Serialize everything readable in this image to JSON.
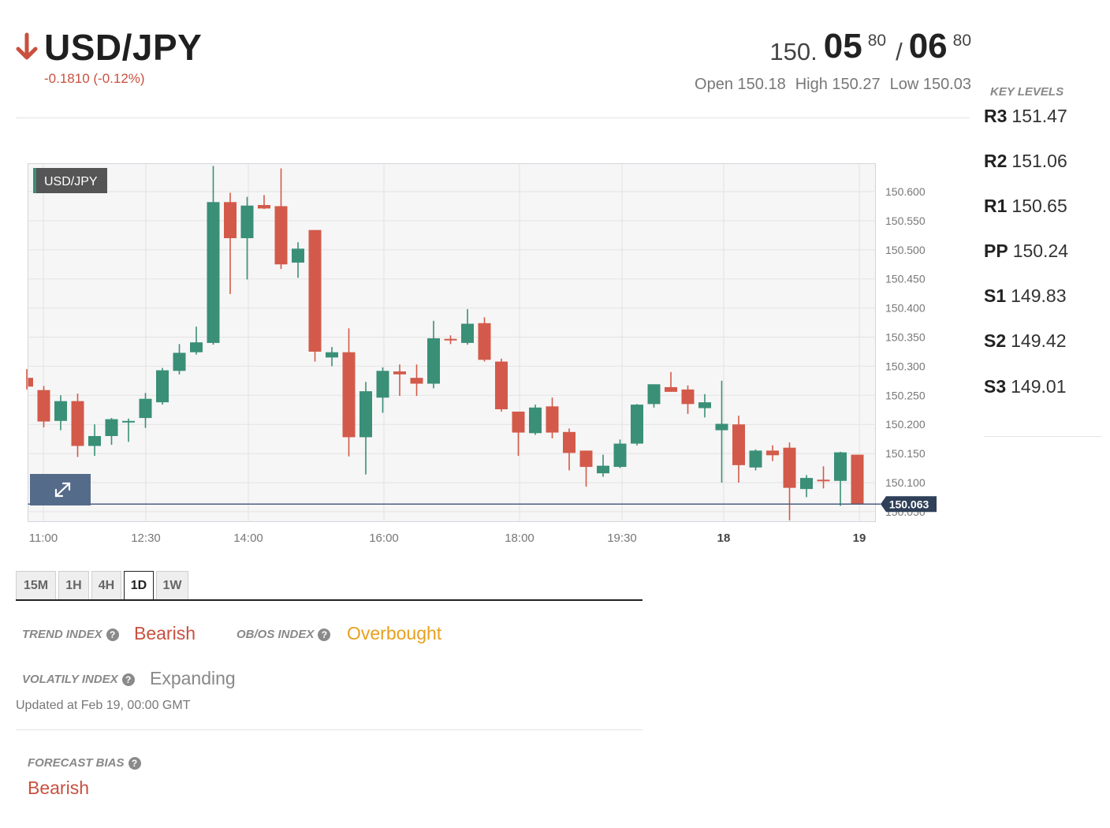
{
  "header": {
    "pair": "USD/JPY",
    "direction": "down",
    "change": "-0.1810 (-0.12%)",
    "bid_prefix": "150.",
    "bid_big": "05",
    "bid_sup": "80",
    "separator": "/",
    "ask_big": "06",
    "ask_sup": "80",
    "open": "Open 150.18",
    "high": "High 150.27",
    "low": "Low 150.03"
  },
  "key_levels": {
    "title": "KEY LEVELS",
    "levels": [
      {
        "name": "R3",
        "value": "151.47"
      },
      {
        "name": "R2",
        "value": "151.06"
      },
      {
        "name": "R1",
        "value": "150.65"
      },
      {
        "name": "PP",
        "value": "150.24"
      },
      {
        "name": "S1",
        "value": "149.83"
      },
      {
        "name": "S2",
        "value": "149.42"
      },
      {
        "name": "S3",
        "value": "149.01"
      }
    ]
  },
  "chart_label": "USD/JPY",
  "chart_data": {
    "type": "candlestick",
    "symbol": "USD/JPY",
    "y_ticks": [
      "150.600",
      "150.550",
      "150.500",
      "150.450",
      "150.400",
      "150.350",
      "150.300",
      "150.250",
      "150.200",
      "150.150",
      "150.100",
      "150.050"
    ],
    "ylim": [
      150.03,
      150.645
    ],
    "x_labels": [
      {
        "label": "11:00",
        "bold": false
      },
      {
        "label": "12:30",
        "bold": false
      },
      {
        "label": "14:00",
        "bold": false
      },
      {
        "label": "16:00",
        "bold": false
      },
      {
        "label": "18:00",
        "bold": false
      },
      {
        "label": "19:30",
        "bold": false
      },
      {
        "label": "18",
        "bold": true
      },
      {
        "label": "19",
        "bold": true
      }
    ],
    "current_price": "150.063",
    "current_value": 150.063,
    "colors": {
      "up": "#3a8f77",
      "down": "#d35a4a",
      "price_line": "#4a5f80"
    },
    "candles": [
      {
        "o": 150.28,
        "h": 150.295,
        "l": 150.26,
        "c": 150.265
      },
      {
        "o": 150.259,
        "h": 150.266,
        "l": 150.195,
        "c": 150.205
      },
      {
        "o": 150.206,
        "h": 150.25,
        "l": 150.19,
        "c": 150.24
      },
      {
        "o": 150.24,
        "h": 150.253,
        "l": 150.144,
        "c": 150.163
      },
      {
        "o": 150.163,
        "h": 150.2,
        "l": 150.146,
        "c": 150.18
      },
      {
        "o": 150.18,
        "h": 150.211,
        "l": 150.165,
        "c": 150.209
      },
      {
        "o": 150.204,
        "h": 150.21,
        "l": 150.17,
        "c": 150.206
      },
      {
        "o": 150.211,
        "h": 150.254,
        "l": 150.194,
        "c": 150.244
      },
      {
        "o": 150.238,
        "h": 150.297,
        "l": 150.234,
        "c": 150.293
      },
      {
        "o": 150.292,
        "h": 150.338,
        "l": 150.286,
        "c": 150.323
      },
      {
        "o": 150.324,
        "h": 150.368,
        "l": 150.32,
        "c": 150.341
      },
      {
        "o": 150.34,
        "h": 150.644,
        "l": 150.337,
        "c": 150.582
      },
      {
        "o": 150.582,
        "h": 150.598,
        "l": 150.424,
        "c": 150.52
      },
      {
        "o": 150.52,
        "h": 150.591,
        "l": 150.449,
        "c": 150.576
      },
      {
        "o": 150.577,
        "h": 150.594,
        "l": 150.57,
        "c": 150.571
      },
      {
        "o": 150.575,
        "h": 150.64,
        "l": 150.467,
        "c": 150.475
      },
      {
        "o": 150.478,
        "h": 150.513,
        "l": 150.452,
        "c": 150.502
      },
      {
        "o": 150.534,
        "h": 150.534,
        "l": 150.308,
        "c": 150.325
      },
      {
        "o": 150.315,
        "h": 150.333,
        "l": 150.3,
        "c": 150.324
      },
      {
        "o": 150.324,
        "h": 150.365,
        "l": 150.145,
        "c": 150.178
      },
      {
        "o": 150.178,
        "h": 150.273,
        "l": 150.114,
        "c": 150.257
      },
      {
        "o": 150.246,
        "h": 150.298,
        "l": 150.22,
        "c": 150.292
      },
      {
        "o": 150.291,
        "h": 150.303,
        "l": 150.249,
        "c": 150.286
      },
      {
        "o": 150.28,
        "h": 150.303,
        "l": 150.249,
        "c": 150.27
      },
      {
        "o": 150.27,
        "h": 150.378,
        "l": 150.262,
        "c": 150.348
      },
      {
        "o": 150.347,
        "h": 150.353,
        "l": 150.338,
        "c": 150.345
      },
      {
        "o": 150.34,
        "h": 150.398,
        "l": 150.337,
        "c": 150.373
      },
      {
        "o": 150.374,
        "h": 150.384,
        "l": 150.308,
        "c": 150.311
      },
      {
        "o": 150.308,
        "h": 150.313,
        "l": 150.222,
        "c": 150.226
      },
      {
        "o": 150.222,
        "h": 150.222,
        "l": 150.146,
        "c": 150.186
      },
      {
        "o": 150.185,
        "h": 150.234,
        "l": 150.182,
        "c": 150.229
      },
      {
        "o": 150.231,
        "h": 150.246,
        "l": 150.176,
        "c": 150.186
      },
      {
        "o": 150.187,
        "h": 150.193,
        "l": 150.121,
        "c": 150.151
      },
      {
        "o": 150.155,
        "h": 150.155,
        "l": 150.093,
        "c": 150.127
      },
      {
        "o": 150.116,
        "h": 150.148,
        "l": 150.11,
        "c": 150.129
      },
      {
        "o": 150.127,
        "h": 150.174,
        "l": 150.125,
        "c": 150.167
      },
      {
        "o": 150.167,
        "h": 150.235,
        "l": 150.164,
        "c": 150.234
      },
      {
        "o": 150.235,
        "h": 150.264,
        "l": 150.229,
        "c": 150.269
      },
      {
        "o": 150.264,
        "h": 150.29,
        "l": 150.256,
        "c": 150.256
      },
      {
        "o": 150.26,
        "h": 150.267,
        "l": 150.218,
        "c": 150.235
      },
      {
        "o": 150.228,
        "h": 150.252,
        "l": 150.212,
        "c": 150.238
      },
      {
        "o": 150.19,
        "h": 150.275,
        "l": 150.1,
        "c": 150.201
      },
      {
        "o": 150.2,
        "h": 150.215,
        "l": 150.1,
        "c": 150.13
      },
      {
        "o": 150.126,
        "h": 150.157,
        "l": 150.121,
        "c": 150.155
      },
      {
        "o": 150.155,
        "h": 150.164,
        "l": 150.137,
        "c": 150.147
      },
      {
        "o": 150.16,
        "h": 150.169,
        "l": 150.035,
        "c": 150.091
      },
      {
        "o": 150.089,
        "h": 150.113,
        "l": 150.075,
        "c": 150.108
      },
      {
        "o": 150.105,
        "h": 150.128,
        "l": 150.09,
        "c": 150.104
      },
      {
        "o": 150.103,
        "h": 150.153,
        "l": 150.06,
        "c": 150.152
      },
      {
        "o": 150.148,
        "h": 150.148,
        "l": 150.063,
        "c": 150.063
      }
    ]
  },
  "timeframes": {
    "items": [
      "15M",
      "1H",
      "4H",
      "1D",
      "1W"
    ],
    "active": "1D"
  },
  "indices": {
    "trend_label": "TREND INDEX",
    "trend_value": "Bearish",
    "trend_color": "#c9503f",
    "obos_label": "OB/OS INDEX",
    "obos_value": "Overbought",
    "obos_color": "#e8a01e",
    "volatility_label": "VOLATILY INDEX",
    "volatility_value": "Expanding",
    "volatility_color": "#888888",
    "updated": "Updated at Feb 19, 00:00 GMT"
  },
  "forecast": {
    "label": "FORECAST BIAS",
    "value": "Bearish",
    "color": "#c9503f"
  }
}
